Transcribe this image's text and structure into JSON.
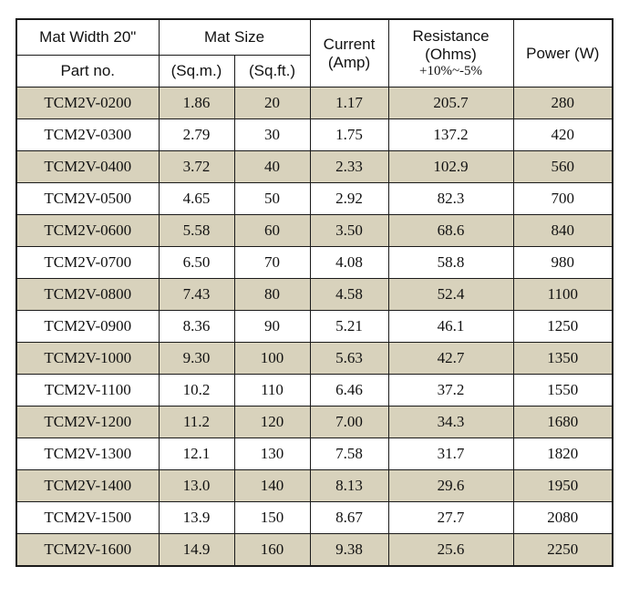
{
  "headers": {
    "mat_width": "Mat Width 20\"",
    "part_no": "Part no.",
    "mat_size": "Mat Size",
    "sqm": "(Sq.m.)",
    "sqft": "(Sq.ft.)",
    "current_line1": "Current",
    "current_line2": "(Amp)",
    "resistance_line1": "Resistance",
    "resistance_line2": "(Ohms)",
    "resistance_tolerance": "+10%~-5%",
    "power": "Power (W)"
  },
  "rows": [
    {
      "part": "TCM2V-0200",
      "sqm": "1.86",
      "sqft": "20",
      "current": "1.17",
      "resistance": "205.7",
      "power": "280"
    },
    {
      "part": "TCM2V-0300",
      "sqm": "2.79",
      "sqft": "30",
      "current": "1.75",
      "resistance": "137.2",
      "power": "420"
    },
    {
      "part": "TCM2V-0400",
      "sqm": "3.72",
      "sqft": "40",
      "current": "2.33",
      "resistance": "102.9",
      "power": "560"
    },
    {
      "part": "TCM2V-0500",
      "sqm": "4.65",
      "sqft": "50",
      "current": "2.92",
      "resistance": "82.3",
      "power": "700"
    },
    {
      "part": "TCM2V-0600",
      "sqm": "5.58",
      "sqft": "60",
      "current": "3.50",
      "resistance": "68.6",
      "power": "840"
    },
    {
      "part": "TCM2V-0700",
      "sqm": "6.50",
      "sqft": "70",
      "current": "4.08",
      "resistance": "58.8",
      "power": "980"
    },
    {
      "part": "TCM2V-0800",
      "sqm": "7.43",
      "sqft": "80",
      "current": "4.58",
      "resistance": "52.4",
      "power": "1100"
    },
    {
      "part": "TCM2V-0900",
      "sqm": "8.36",
      "sqft": "90",
      "current": "5.21",
      "resistance": "46.1",
      "power": "1250"
    },
    {
      "part": "TCM2V-1000",
      "sqm": "9.30",
      "sqft": "100",
      "current": "5.63",
      "resistance": "42.7",
      "power": "1350"
    },
    {
      "part": "TCM2V-1100",
      "sqm": "10.2",
      "sqft": "110",
      "current": "6.46",
      "resistance": "37.2",
      "power": "1550"
    },
    {
      "part": "TCM2V-1200",
      "sqm": "11.2",
      "sqft": "120",
      "current": "7.00",
      "resistance": "34.3",
      "power": "1680"
    },
    {
      "part": "TCM2V-1300",
      "sqm": "12.1",
      "sqft": "130",
      "current": "7.58",
      "resistance": "31.7",
      "power": "1820"
    },
    {
      "part": "TCM2V-1400",
      "sqm": "13.0",
      "sqft": "140",
      "current": "8.13",
      "resistance": "29.6",
      "power": "1950"
    },
    {
      "part": "TCM2V-1500",
      "sqm": "13.9",
      "sqft": "150",
      "current": "8.67",
      "resistance": "27.7",
      "power": "2080"
    },
    {
      "part": "TCM2V-1600",
      "sqm": "14.9",
      "sqft": "160",
      "current": "9.38",
      "resistance": "25.6",
      "power": "2250"
    }
  ],
  "colors": {
    "band": "#d8d2bc",
    "plain": "#ffffff",
    "border": "#1a1a1a"
  }
}
